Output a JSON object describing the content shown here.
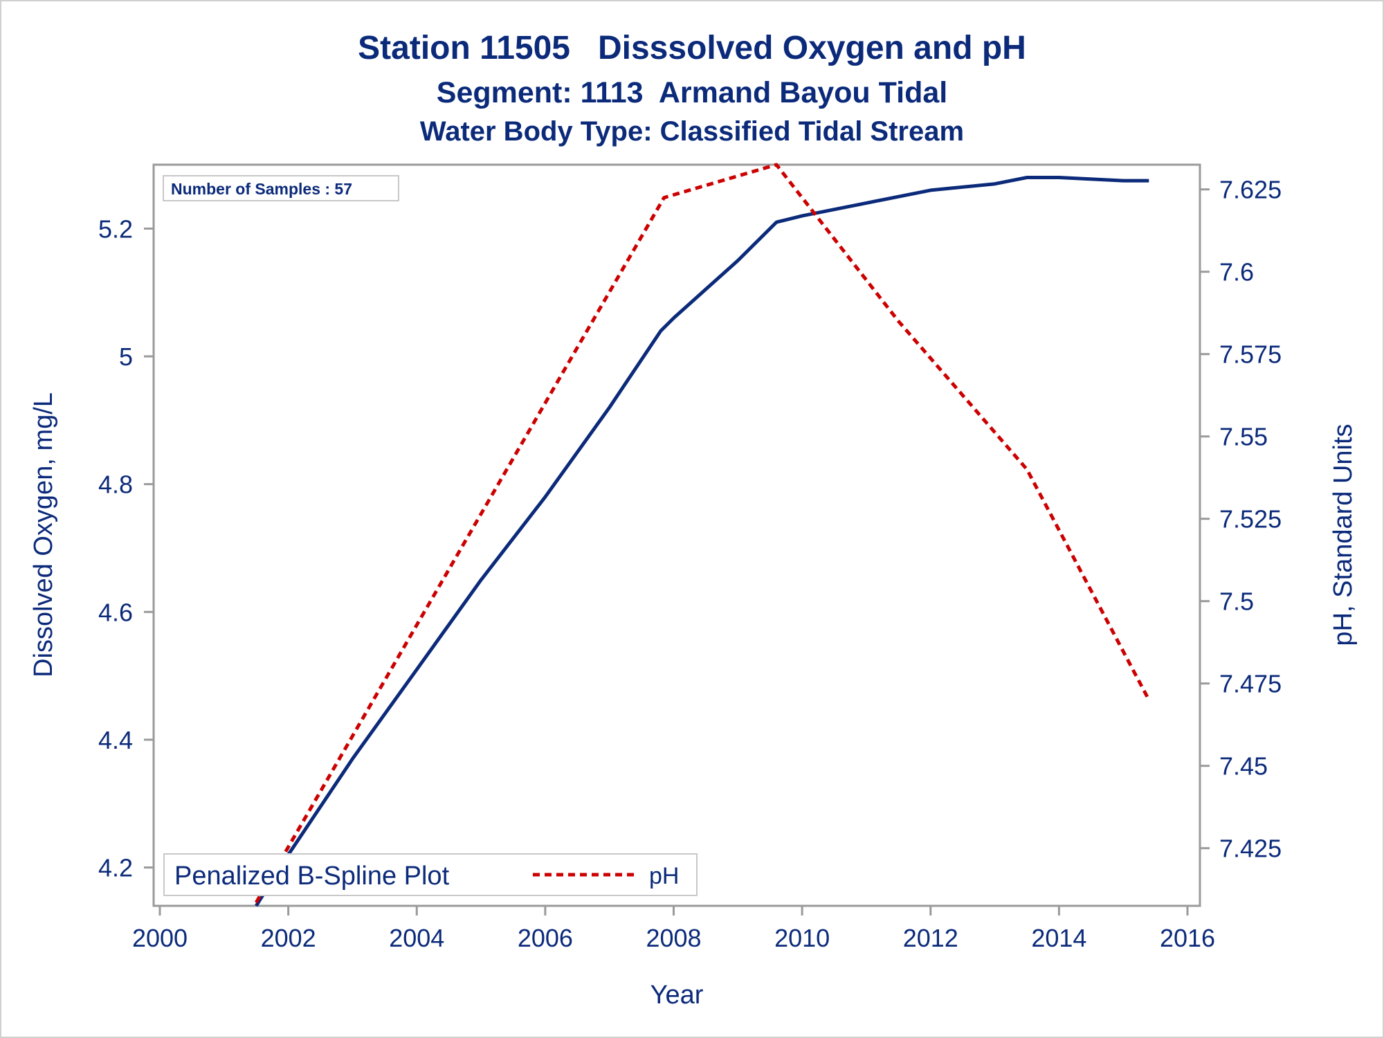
{
  "titles": {
    "line1": "Station 11505   Disssolved Oxygen and pH",
    "line2": "Segment: 1113  Armand Bayou Tidal",
    "line3": "Water Body Type: Classified Tidal Stream"
  },
  "inset_text": "Number of Samples : 57",
  "legend": {
    "title": "Penalized B-Spline Plot",
    "placement": "bottom-left"
  },
  "colors": {
    "do_line": "#0b2a7a",
    "ph_line": "#cc0000",
    "text": "#0b2a7a",
    "frame": "#9a9a9a"
  },
  "chart_data": {
    "type": "line",
    "xlabel": "Year",
    "ylabel_left": "Dissolved Oxygen, mg/L",
    "ylabel_right": "pH, Standard Units",
    "xlim": [
      2000,
      2016
    ],
    "x_ticks": [
      2000,
      2002,
      2004,
      2006,
      2008,
      2010,
      2012,
      2014,
      2016
    ],
    "ylim_left": [
      4.14,
      5.3
    ],
    "y_ticks_left": [
      4.2,
      4.4,
      4.6,
      4.8,
      5.0,
      5.2
    ],
    "y_tick_labels_left": [
      "4.2",
      "4.4",
      "4.6",
      "4.8",
      "5",
      "5.2"
    ],
    "ylim_right": [
      7.4075,
      7.6325
    ],
    "y_ticks_right": [
      7.425,
      7.45,
      7.475,
      7.5,
      7.525,
      7.55,
      7.575,
      7.6,
      7.625
    ],
    "y_tick_labels_right": [
      "7.425",
      "7.45",
      "7.475",
      "7.5",
      "7.525",
      "7.55",
      "7.575",
      "7.6",
      "7.625"
    ],
    "grid": false,
    "series": [
      {
        "name": "",
        "axis": "left",
        "style": "solid",
        "x": [
          2001.5,
          2002.0,
          2003.0,
          2004.0,
          2005.0,
          2006.0,
          2007.0,
          2007.8,
          2008.0,
          2009.0,
          2009.6,
          2010.0,
          2011.0,
          2012.0,
          2013.0,
          2013.5,
          2014.0,
          2015.0,
          2015.4
        ],
        "y": [
          4.14,
          4.22,
          4.37,
          4.51,
          4.65,
          4.78,
          4.92,
          5.04,
          5.06,
          5.15,
          5.21,
          5.22,
          5.24,
          5.26,
          5.27,
          5.28,
          5.28,
          5.275,
          5.275
        ]
      },
      {
        "name": "pH",
        "axis": "right",
        "style": "dashed",
        "x": [
          2001.5,
          2007.85,
          2009.6,
          2011.5,
          2013.5,
          2015.4
        ],
        "y": [
          7.4085,
          7.6225,
          7.6325,
          7.585,
          7.54,
          7.47
        ]
      }
    ]
  }
}
